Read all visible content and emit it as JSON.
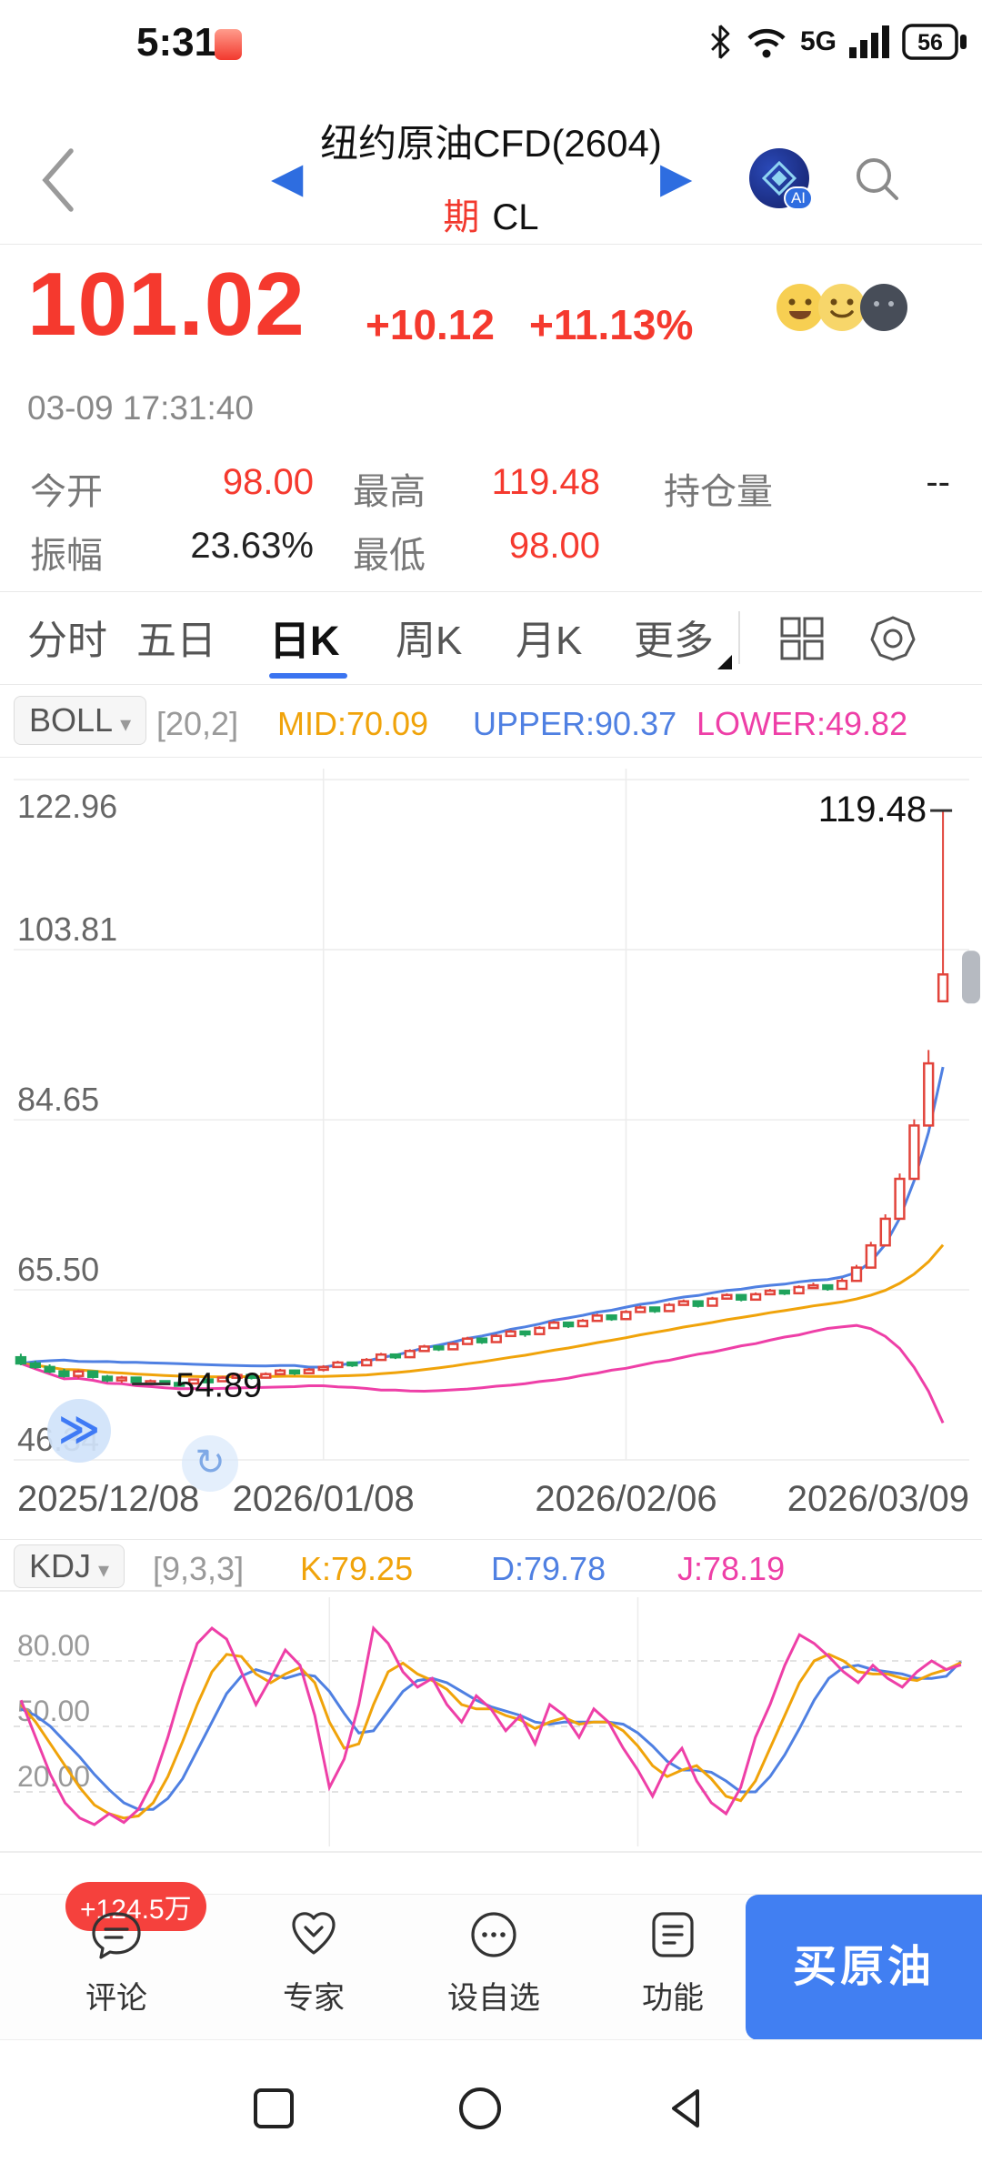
{
  "status_bar": {
    "time": "5:31",
    "network": "5G",
    "battery": "56"
  },
  "header": {
    "title": "纽约原油CFD(2604)",
    "market_badge": "期",
    "symbol": "CL"
  },
  "quote": {
    "price": "101.02",
    "change": "+10.12",
    "change_pct": "+11.13%",
    "timestamp": "03-09 17:31:40",
    "stats": [
      {
        "label": "今开",
        "value": "98.00"
      },
      {
        "label": "最高",
        "value": "119.48"
      },
      {
        "label": "持仓量",
        "value": "--"
      },
      {
        "label": "振幅",
        "value": "23.63%"
      },
      {
        "label": "最低",
        "value": "98.00"
      }
    ]
  },
  "tabs": {
    "items": [
      "分时",
      "五日",
      "日K",
      "周K",
      "月K",
      "更多"
    ],
    "active": "日K"
  },
  "indicators": {
    "boll": {
      "name": "BOLL",
      "params": "[20,2]",
      "mid": "MID:70.09",
      "upper": "UPPER:90.37",
      "lower": "LOWER:49.82"
    },
    "kdj": {
      "name": "KDJ",
      "params": "[9,3,3]",
      "k": "K:79.25",
      "d": "D:79.78",
      "j": "J:78.19"
    }
  },
  "floating": {
    "expand_glyph": "≫",
    "rotate_glyph": "↻"
  },
  "chart_data": [
    {
      "type": "candlestick",
      "title": "纽约原油CFD(2604) 日K BOLL(20,2)",
      "y_ticks": [
        122.96,
        103.81,
        84.65,
        65.5,
        46.34
      ],
      "ylim": [
        46.34,
        124.2
      ],
      "x_labels": [
        "2025/12/08",
        "2026/01/08",
        "2026/02/06",
        "2026/03/09"
      ],
      "x_grid_indices": [
        21,
        42
      ],
      "annotations": {
        "high": 119.48,
        "low": 54.89,
        "low_index": 11
      },
      "last_close": 101.02,
      "overlays": {
        "boll_period": 20,
        "boll_mult": 2
      },
      "up_color": "#e2443b",
      "down_color": "#1fa35c",
      "boll_colors": {
        "upper": "#4f80e2",
        "mid": "#f0a30a",
        "lower": "#ee3fa7"
      },
      "candles": [
        [
          57.9,
          58.3,
          57.0,
          57.2
        ],
        [
          57.2,
          57.5,
          56.6,
          56.8
        ],
        [
          56.8,
          57.1,
          56.1,
          56.3
        ],
        [
          56.3,
          56.6,
          55.6,
          55.8
        ],
        [
          55.8,
          56.5,
          55.5,
          56.3
        ],
        [
          56.3,
          56.4,
          55.5,
          55.7
        ],
        [
          55.7,
          55.9,
          55.1,
          55.3
        ],
        [
          55.3,
          55.8,
          55.0,
          55.6
        ],
        [
          55.6,
          55.7,
          54.9,
          55.1
        ],
        [
          55.1,
          55.4,
          54.9,
          55.2
        ],
        [
          55.2,
          55.3,
          54.9,
          55.0
        ],
        [
          55.0,
          55.2,
          54.89,
          54.95
        ],
        [
          54.95,
          55.5,
          54.9,
          55.4
        ],
        [
          55.4,
          55.6,
          55.0,
          55.2
        ],
        [
          55.2,
          55.8,
          55.1,
          55.6
        ],
        [
          55.6,
          56.1,
          55.5,
          55.9
        ],
        [
          55.9,
          56.0,
          55.4,
          55.6
        ],
        [
          55.6,
          56.2,
          55.5,
          56.0
        ],
        [
          56.0,
          56.6,
          55.9,
          56.4
        ],
        [
          56.4,
          56.5,
          55.9,
          56.1
        ],
        [
          56.1,
          56.7,
          56.0,
          56.5
        ],
        [
          56.5,
          57.0,
          56.3,
          56.8
        ],
        [
          56.8,
          57.5,
          56.7,
          57.3
        ],
        [
          57.3,
          57.4,
          56.8,
          57.0
        ],
        [
          57.0,
          57.8,
          56.9,
          57.6
        ],
        [
          57.6,
          58.4,
          57.5,
          58.2
        ],
        [
          58.2,
          58.3,
          57.7,
          57.9
        ],
        [
          57.9,
          58.8,
          57.8,
          58.6
        ],
        [
          58.6,
          59.3,
          58.5,
          59.1
        ],
        [
          59.1,
          59.2,
          58.6,
          58.8
        ],
        [
          58.8,
          59.6,
          58.7,
          59.4
        ],
        [
          59.4,
          60.2,
          59.3,
          60.0
        ],
        [
          60.0,
          60.1,
          59.4,
          59.6
        ],
        [
          59.6,
          60.5,
          59.5,
          60.3
        ],
        [
          60.3,
          61.0,
          60.2,
          60.8
        ],
        [
          60.8,
          60.9,
          60.2,
          60.5
        ],
        [
          60.5,
          61.4,
          60.4,
          61.2
        ],
        [
          61.2,
          62.0,
          61.1,
          61.8
        ],
        [
          61.8,
          61.9,
          61.2,
          61.4
        ],
        [
          61.4,
          62.2,
          61.3,
          62.0
        ],
        [
          62.0,
          62.8,
          61.9,
          62.6
        ],
        [
          62.6,
          62.7,
          62.0,
          62.2
        ],
        [
          62.2,
          63.2,
          62.1,
          63.0
        ],
        [
          63.0,
          63.7,
          62.9,
          63.5
        ],
        [
          63.5,
          63.6,
          62.9,
          63.1
        ],
        [
          63.1,
          64.0,
          63.0,
          63.8
        ],
        [
          63.8,
          64.4,
          63.7,
          64.2
        ],
        [
          64.2,
          64.3,
          63.5,
          63.7
        ],
        [
          63.7,
          64.7,
          63.6,
          64.5
        ],
        [
          64.5,
          65.1,
          64.4,
          64.9
        ],
        [
          64.9,
          65.0,
          64.2,
          64.4
        ],
        [
          64.4,
          65.2,
          64.3,
          65.0
        ],
        [
          65.0,
          65.6,
          64.9,
          65.4
        ],
        [
          65.4,
          65.5,
          64.9,
          65.1
        ],
        [
          65.1,
          66.0,
          65.0,
          65.8
        ],
        [
          65.8,
          66.3,
          65.7,
          66.0
        ],
        [
          66.0,
          66.1,
          65.4,
          65.6
        ],
        [
          65.6,
          66.8,
          65.5,
          66.5
        ],
        [
          66.5,
          68.3,
          66.4,
          68.0
        ],
        [
          68.0,
          70.9,
          67.9,
          70.5
        ],
        [
          70.5,
          74.0,
          70.4,
          73.5
        ],
        [
          73.5,
          78.6,
          73.4,
          78.0
        ],
        [
          78.0,
          84.7,
          77.9,
          84.0
        ],
        [
          84.0,
          92.5,
          83.9,
          91.0
        ],
        [
          98.0,
          119.48,
          98.0,
          101.02
        ]
      ]
    },
    {
      "type": "line",
      "title": "KDJ(9,3,3)",
      "y_ticks": [
        80,
        50,
        20
      ],
      "ylim": [
        0,
        100
      ],
      "x_grid_indices": [
        21,
        42
      ],
      "series": [
        {
          "name": "J",
          "color": "#ee3fa7",
          "values": [
            62,
            45,
            28,
            15,
            8,
            5,
            10,
            6,
            12,
            25,
            45,
            68,
            88,
            95,
            90,
            75,
            60,
            72,
            85,
            78,
            55,
            22,
            35,
            60,
            95,
            88,
            75,
            68,
            72,
            60,
            52,
            64,
            58,
            48,
            55,
            42,
            60,
            55,
            45,
            58,
            52,
            40,
            30,
            18,
            32,
            40,
            25,
            15,
            10,
            22,
            45,
            60,
            78,
            92,
            88,
            82,
            75,
            70,
            78,
            72,
            68,
            75,
            80,
            76,
            78.19
          ]
        },
        {
          "name": "K",
          "color": "#f0a30a",
          "values": [
            60,
            52,
            42,
            32,
            22,
            14,
            10,
            8,
            9,
            15,
            27,
            43,
            60,
            75,
            83,
            82,
            74,
            70,
            74,
            77,
            70,
            52,
            40,
            42,
            60,
            75,
            79,
            74,
            71,
            67,
            60,
            58,
            58,
            55,
            53,
            49,
            52,
            54,
            51,
            52,
            52,
            48,
            41,
            32,
            27,
            30,
            32,
            26,
            18,
            16,
            25,
            40,
            55,
            70,
            80,
            83,
            80,
            75,
            74,
            74,
            72,
            71,
            74,
            76,
            79.25
          ]
        },
        {
          "name": "D",
          "color": "#4f80e2",
          "values": [
            58,
            55,
            50,
            43,
            36,
            28,
            21,
            15,
            12,
            12,
            17,
            26,
            39,
            52,
            65,
            73,
            76,
            74,
            72,
            74,
            73,
            66,
            56,
            47,
            48,
            57,
            66,
            71,
            72,
            70,
            66,
            62,
            59,
            57,
            55,
            52,
            51,
            52,
            52,
            52,
            52,
            51,
            47,
            41,
            34,
            30,
            30,
            29,
            25,
            20,
            20,
            27,
            37,
            49,
            62,
            72,
            77,
            78,
            76,
            75,
            74,
            72,
            72,
            73,
            79.78
          ]
        }
      ]
    }
  ],
  "bottom_bar": {
    "items": [
      {
        "label": "评论",
        "badge": "+124.5万"
      },
      {
        "label": "专家"
      },
      {
        "label": "设自选"
      },
      {
        "label": "功能"
      }
    ],
    "buy_button": "买原油"
  }
}
